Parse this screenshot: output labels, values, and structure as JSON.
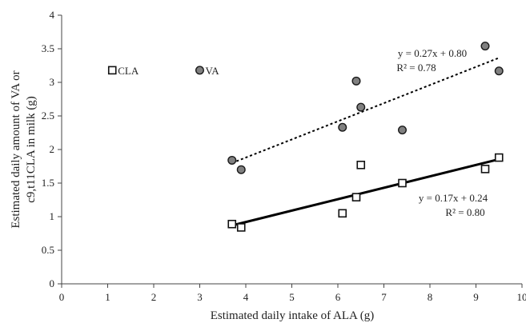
{
  "chart_data": {
    "type": "scatter",
    "xlabel": "Estimated daily intake of ALA (g)",
    "ylabel_lines": [
      "Estimated daily amount of VA or",
      "c9,t11CLA in milk (g)"
    ],
    "xlim": [
      0,
      10
    ],
    "ylim": [
      0,
      4
    ],
    "x_ticks": [
      "0",
      "1",
      "2",
      "3",
      "4",
      "5",
      "6",
      "7",
      "8",
      "9",
      "10"
    ],
    "y_ticks": [
      "0",
      "0.5",
      "1",
      "1.5",
      "2",
      "2.5",
      "3",
      "3.5",
      "4"
    ],
    "grid": false,
    "legend": [
      "CLA",
      "VA"
    ],
    "series": [
      {
        "name": "VA",
        "marker": "circle",
        "color": "#808080",
        "points": [
          [
            3.7,
            1.84
          ],
          [
            3.9,
            1.7
          ],
          [
            6.1,
            2.33
          ],
          [
            6.4,
            3.02
          ],
          [
            6.5,
            2.63
          ],
          [
            7.4,
            2.29
          ],
          [
            9.2,
            3.54
          ],
          [
            9.5,
            3.17
          ]
        ],
        "trendline": {
          "style": "dashed",
          "slope": 0.27,
          "intercept": 0.8,
          "x_range": [
            3.7,
            9.5
          ]
        },
        "equation": "y = 0.27x + 0.80",
        "r2": "R² = 0.78"
      },
      {
        "name": "CLA",
        "marker": "square",
        "color": "#ffffff",
        "points": [
          [
            3.7,
            0.89
          ],
          [
            3.9,
            0.84
          ],
          [
            6.1,
            1.05
          ],
          [
            6.4,
            1.29
          ],
          [
            6.5,
            1.77
          ],
          [
            7.4,
            1.5
          ],
          [
            9.2,
            1.71
          ],
          [
            9.5,
            1.88
          ]
        ],
        "trendline": {
          "style": "solid",
          "slope": 0.17,
          "intercept": 0.24,
          "x_range": [
            3.7,
            9.5
          ]
        },
        "equation": "y = 0.17x + 0.24",
        "r2": "R² = 0.80"
      }
    ]
  }
}
